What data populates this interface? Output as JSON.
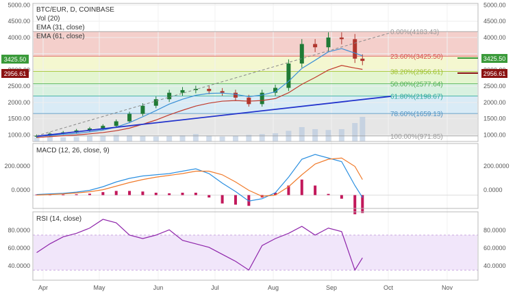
{
  "header": {
    "symbol": "BTC/EUR, D, COINBASE",
    "vol": "Vol (20)",
    "ema31": "EMA (31, close)",
    "ema61": "EMA (61, close)"
  },
  "colors": {
    "candle_up": "#1f7a35",
    "candle_down": "#b0362e",
    "ema31": "#3b8fd6",
    "ema61": "#c0392b",
    "trend": "#2233cc",
    "macd": "#2b8fe0",
    "signal": "#f07a2a",
    "hist": "#c2185b",
    "rsi": "#8e24aa",
    "rsi_band": "#f1e6fa",
    "price_green": "#3a9a3a",
    "price_red": "#8b1212"
  },
  "price_labels": {
    "green": "3425.50",
    "red": "2956.61"
  },
  "fib_levels": [
    {
      "label": "0.00%(4183.43)",
      "value": 4183.43,
      "color": "#999999",
      "fill": "#f4cfcb"
    },
    {
      "label": "23.60%(3425.50)",
      "value": 3425.5,
      "color": "#d9534f",
      "fill": "#f4f7d0"
    },
    {
      "label": "38.20%(2956.61)",
      "value": 2956.61,
      "color": "#9cbf2a",
      "fill": "#e4f5cf"
    },
    {
      "label": "50.00%(2577.64)",
      "value": 2577.64,
      "color": "#4caf50",
      "fill": "#d8f1e0"
    },
    {
      "label": "61.80%(2198.67)",
      "value": 2198.67,
      "color": "#26a69a",
      "fill": "#d9ebf6"
    },
    {
      "label": "78.60%(1659.13)",
      "value": 1659.13,
      "color": "#4a90c2",
      "fill": "#e6e6e6"
    },
    {
      "label": "100.00%(971.85)",
      "value": 971.85,
      "color": "#999999",
      "fill": null
    }
  ],
  "axes": {
    "price_ticks": [
      "5000.00",
      "4500.00",
      "4000.00",
      "3500.00",
      "3000.00",
      "2500.00",
      "2000.00",
      "1500.00",
      "1000.00"
    ],
    "macd_ticks": [
      "200.0000",
      "0.0000"
    ],
    "rsi_ticks": [
      "80.0000",
      "60.0000",
      "40.0000"
    ],
    "months": [
      "Apr",
      "May",
      "Jun",
      "Jul",
      "Aug",
      "Sep",
      "Oct",
      "Nov"
    ]
  },
  "panels": {
    "macd_title": "MACD (12, 26, close, 9)",
    "rsi_title": "RSI (14, close)"
  },
  "chart_data": {
    "type": "candlestick",
    "title": "BTC/EUR, D, COINBASE",
    "ylim": [
      800,
      5050
    ],
    "x": [
      "2017-03-27",
      "2017-04-03",
      "2017-04-10",
      "2017-04-17",
      "2017-04-24",
      "2017-05-01",
      "2017-05-08",
      "2017-05-15",
      "2017-05-22",
      "2017-05-29",
      "2017-06-05",
      "2017-06-12",
      "2017-06-19",
      "2017-06-26",
      "2017-07-03",
      "2017-07-10",
      "2017-07-17",
      "2017-07-24",
      "2017-07-31",
      "2017-08-07",
      "2017-08-14",
      "2017-08-21",
      "2017-08-28",
      "2017-09-04",
      "2017-09-11",
      "2017-09-15"
    ],
    "close": [
      975,
      1040,
      1080,
      1140,
      1200,
      1280,
      1420,
      1650,
      1900,
      2100,
      2300,
      2380,
      2420,
      2350,
      2300,
      2150,
      1950,
      2300,
      2450,
      3200,
      3800,
      3700,
      4000,
      3950,
      3350,
      3280
    ],
    "series": [
      {
        "name": "EMA (31, close)",
        "values": [
          950,
          985,
          1015,
          1050,
          1095,
          1150,
          1240,
          1380,
          1560,
          1750,
          1950,
          2100,
          2220,
          2280,
          2290,
          2250,
          2180,
          2230,
          2330,
          2650,
          3050,
          3300,
          3560,
          3660,
          3520,
          3440
        ]
      },
      {
        "name": "EMA (61, close)",
        "values": [
          920,
          950,
          975,
          1000,
          1035,
          1075,
          1130,
          1210,
          1330,
          1460,
          1620,
          1760,
          1890,
          1980,
          2040,
          2060,
          2040,
          2060,
          2120,
          2300,
          2560,
          2770,
          3000,
          3140,
          3060,
          3020
        ]
      },
      {
        "name": "Vol (20)",
        "values": [
          10,
          12,
          10,
          11,
          13,
          14,
          16,
          15,
          14,
          12,
          13,
          15,
          18,
          14,
          12,
          14,
          16,
          18,
          20,
          26,
          35,
          30,
          28,
          30,
          45,
          60
        ]
      }
    ],
    "trendline": [
      [
        "2017-03-27",
        960
      ],
      [
        "2017-09-30",
        2190
      ]
    ],
    "macd": {
      "macd": [
        5,
        10,
        15,
        25,
        40,
        70,
        110,
        140,
        160,
        170,
        180,
        200,
        220,
        180,
        100,
        30,
        -50,
        -30,
        20,
        150,
        300,
        340,
        310,
        280,
        80,
        -20
      ],
      "signal": [
        0,
        5,
        10,
        18,
        28,
        45,
        75,
        105,
        130,
        150,
        165,
        180,
        200,
        200,
        170,
        110,
        40,
        -10,
        0,
        70,
        170,
        260,
        300,
        310,
        240,
        130
      ]
    },
    "rsi": [
      50,
      60,
      68,
      72,
      78,
      88,
      84,
      70,
      66,
      70,
      76,
      64,
      60,
      56,
      48,
      40,
      30,
      58,
      66,
      72,
      80,
      70,
      78,
      74,
      30,
      44
    ]
  }
}
